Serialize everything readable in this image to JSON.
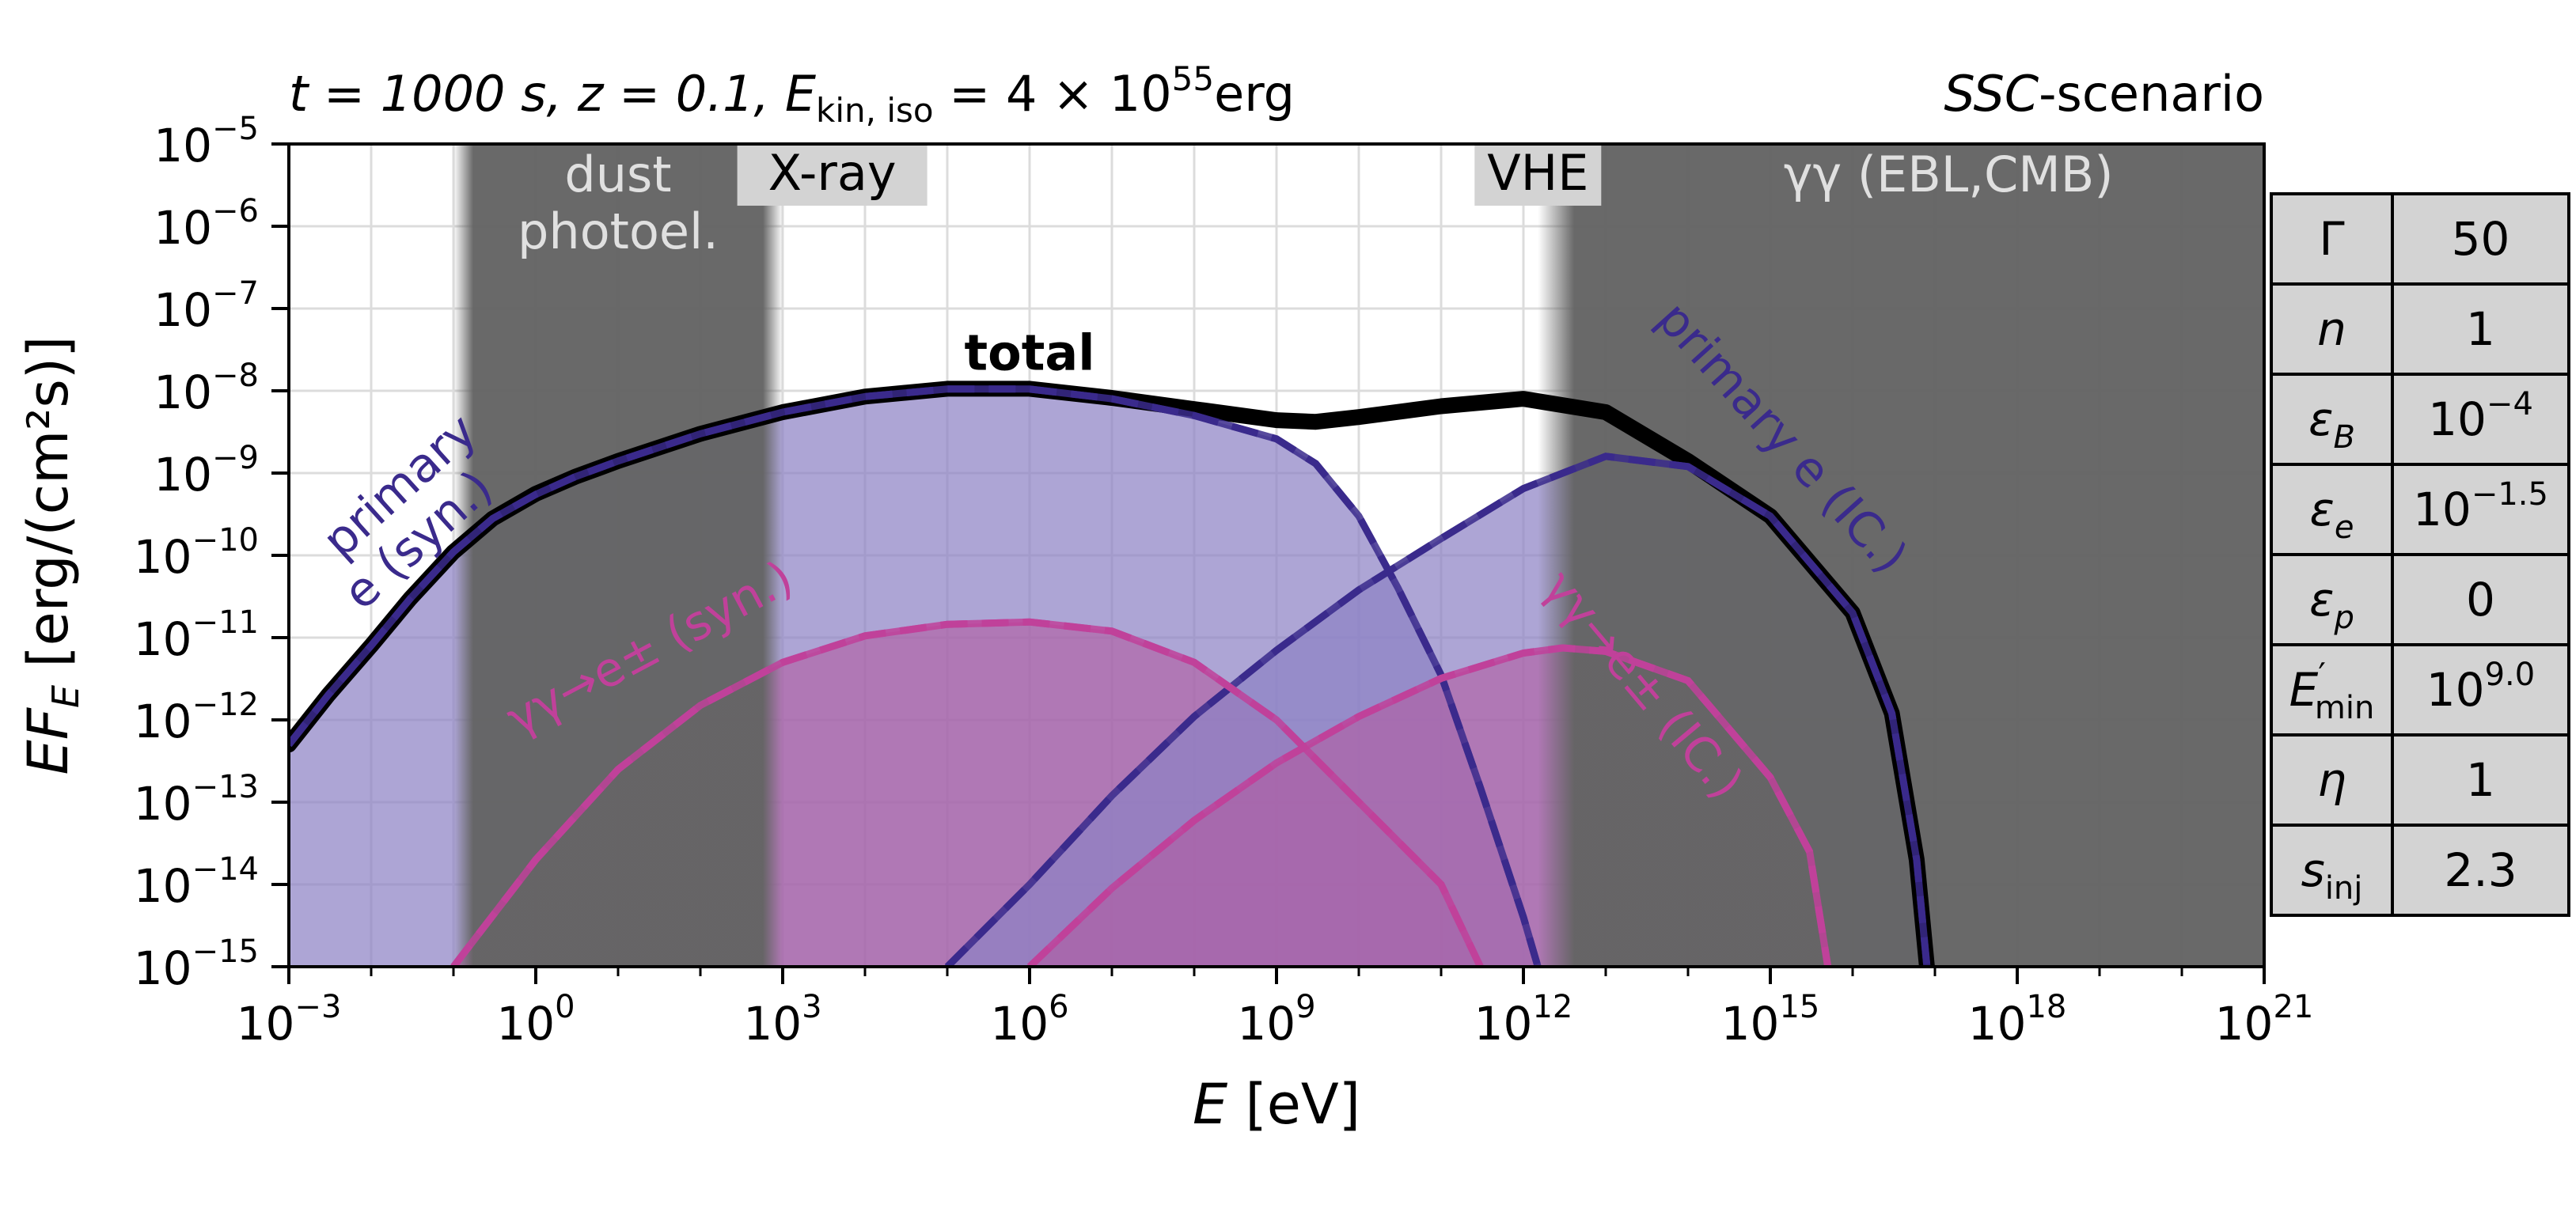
{
  "title_left": {
    "t_part": "t = 1000 s, ",
    "z_part": "z = 0.1, ",
    "e_sym": "E",
    "e_sub": "kin, iso",
    "e_val": " = 4 × 10",
    "e_exp": "55",
    "e_unit": "erg"
  },
  "title_right": {
    "italic": "SSC",
    "rest": "-scenario"
  },
  "colors": {
    "background": "#ffffff",
    "absorption_band": "#646464",
    "primary": "#3a2a8c",
    "primary_fill": "#8d82c5",
    "pair": "#c0419a",
    "pair_fill": "#b25aa0",
    "total": "#000000",
    "label_box": "#d3d3d3",
    "table_cell": "#d3d3d3"
  },
  "chart_data": {
    "type": "line",
    "x_scale": "log",
    "y_scale": "log",
    "xlim": [
      0.001,
      1e+21
    ],
    "ylim": [
      1e-15,
      1e-05
    ],
    "grid": true,
    "xlabel": {
      "sym": "E",
      "unit": " [eV]"
    },
    "ylabel": {
      "sym": "EF",
      "sub": "E",
      "unit": " [erg/(cm²s)]"
    },
    "x_ticks": [
      {
        "base": "10",
        "exp": "−3",
        "value": 0.001
      },
      {
        "base": "10",
        "exp": "0",
        "value": 1
      },
      {
        "base": "10",
        "exp": "3",
        "value": 1000
      },
      {
        "base": "10",
        "exp": "6",
        "value": 1000000
      },
      {
        "base": "10",
        "exp": "9",
        "value": 1000000000
      },
      {
        "base": "10",
        "exp": "12",
        "value": 1000000000000.0
      },
      {
        "base": "10",
        "exp": "15",
        "value": 1000000000000000.0
      },
      {
        "base": "10",
        "exp": "18",
        "value": 1e+18
      },
      {
        "base": "10",
        "exp": "21",
        "value": 1e+21
      }
    ],
    "y_ticks": [
      {
        "base": "10",
        "exp": "−5",
        "value": 1e-05
      },
      {
        "base": "10",
        "exp": "−6",
        "value": 1e-06
      },
      {
        "base": "10",
        "exp": "−7",
        "value": 1e-07
      },
      {
        "base": "10",
        "exp": "−8",
        "value": 1e-08
      },
      {
        "base": "10",
        "exp": "−9",
        "value": 1e-09
      },
      {
        "base": "10",
        "exp": "−10",
        "value": 1e-10
      },
      {
        "base": "10",
        "exp": "−11",
        "value": 1e-11
      },
      {
        "base": "10",
        "exp": "−12",
        "value": 1e-12
      },
      {
        "base": "10",
        "exp": "−13",
        "value": 1e-13
      },
      {
        "base": "10",
        "exp": "−14",
        "value": 1e-14
      },
      {
        "base": "10",
        "exp": "−15",
        "value": 1e-15
      }
    ],
    "absorption_bands": [
      {
        "label_lines": [
          "dust",
          "photoel."
        ],
        "x_range": [
          0.1,
          1000
        ]
      },
      {
        "label_lines": [
          "γγ (EBL,CMB)"
        ],
        "x_range": [
          1500000000000.0,
          1e+21
        ]
      }
    ],
    "windows": [
      {
        "label": "X-ray",
        "x": 4000
      },
      {
        "label": "VHE",
        "x": 1500000000000.0
      }
    ],
    "series": [
      {
        "name": "primary e (syn.)",
        "kind": "primary",
        "points": [
          [
            0.001,
            5e-13
          ],
          [
            0.003,
            2e-12
          ],
          [
            0.01,
            8e-12
          ],
          [
            0.03,
            3e-11
          ],
          [
            0.1,
            1.1e-10
          ],
          [
            0.3,
            2.8e-10
          ],
          [
            1,
            5.5e-10
          ],
          [
            3,
            9e-10
          ],
          [
            10,
            1.4e-09
          ],
          [
            100,
            3e-09
          ],
          [
            1000,
            5.5e-09
          ],
          [
            10000,
            8.5e-09
          ],
          [
            100000,
            1.05e-08
          ],
          [
            1000000,
            1.05e-08
          ],
          [
            10000000,
            8e-09
          ],
          [
            100000000,
            5e-09
          ],
          [
            1000000000,
            2.6e-09
          ],
          [
            3000000000,
            1.3e-09
          ],
          [
            10000000000,
            3e-10
          ],
          [
            30000000000,
            4e-11
          ],
          [
            100000000000,
            3.5e-12
          ],
          [
            300000000000,
            1.5e-13
          ],
          [
            1000000000000,
            4e-15
          ],
          [
            1500000000000,
            1e-15
          ]
        ]
      },
      {
        "name": "primary e (IC.)",
        "kind": "primary",
        "points": [
          [
            100000,
            1e-15
          ],
          [
            1000000,
            1e-14
          ],
          [
            10000000,
            1.2e-13
          ],
          [
            100000000,
            1.1e-12
          ],
          [
            1000000000,
            7e-12
          ],
          [
            10000000000,
            3.8e-11
          ],
          [
            100000000000,
            1.6e-10
          ],
          [
            1000000000000,
            6.5e-10
          ],
          [
            10000000000000,
            1.6e-09
          ],
          [
            100000000000000,
            1.2e-09
          ],
          [
            1000000000000000,
            3e-10
          ],
          [
            1e+16,
            2e-11
          ],
          [
            3e+16,
            1.2e-12
          ],
          [
            6e+16,
            2e-14
          ],
          [
            8e+16,
            1e-15
          ]
        ]
      },
      {
        "name": "γγ→e± (syn.)",
        "kind": "pair",
        "points": [
          [
            0.1,
            1e-15
          ],
          [
            1,
            2e-14
          ],
          [
            10,
            2.5e-13
          ],
          [
            100,
            1.5e-12
          ],
          [
            1000,
            5e-12
          ],
          [
            10000,
            1.05e-11
          ],
          [
            100000,
            1.45e-11
          ],
          [
            1000000,
            1.55e-11
          ],
          [
            10000000,
            1.2e-11
          ],
          [
            100000000,
            5e-12
          ],
          [
            1000000000,
            1e-12
          ],
          [
            10000000000,
            1e-13
          ],
          [
            100000000000,
            1e-14
          ],
          [
            300000000000,
            1e-15
          ]
        ]
      },
      {
        "name": "γγ→e± (IC.)",
        "kind": "pair",
        "points": [
          [
            1000000,
            1e-15
          ],
          [
            10000000,
            9e-15
          ],
          [
            100000000,
            6e-14
          ],
          [
            1000000000,
            3e-13
          ],
          [
            10000000000,
            1.1e-12
          ],
          [
            100000000000,
            3.2e-12
          ],
          [
            1000000000000,
            6.5e-12
          ],
          [
            3000000000000,
            7.5e-12
          ],
          [
            10000000000000,
            6.8e-12
          ],
          [
            100000000000000,
            3e-12
          ],
          [
            1000000000000000,
            2e-13
          ],
          [
            3000000000000000,
            2.5e-14
          ],
          [
            5000000000000000,
            1e-15
          ]
        ]
      }
    ],
    "total": {
      "name": "total",
      "points": [
        [
          0.001,
          5e-13
        ],
        [
          0.003,
          2e-12
        ],
        [
          0.01,
          8e-12
        ],
        [
          0.03,
          3e-11
        ],
        [
          0.1,
          1.1e-10
        ],
        [
          0.3,
          2.8e-10
        ],
        [
          1,
          5.6e-10
        ],
        [
          3,
          9e-10
        ],
        [
          10,
          1.4e-09
        ],
        [
          100,
          3e-09
        ],
        [
          1000,
          5.5e-09
        ],
        [
          10000,
          8.5e-09
        ],
        [
          100000,
          1.06e-08
        ],
        [
          1000000,
          1.06e-08
        ],
        [
          10000000,
          8.2e-09
        ],
        [
          100000000,
          6e-09
        ],
        [
          1000000000,
          4.4e-09
        ],
        [
          3000000000,
          4.2e-09
        ],
        [
          10000000000,
          4.8e-09
        ],
        [
          100000000000,
          6.5e-09
        ],
        [
          1000000000000,
          8e-09
        ],
        [
          10000000000000,
          5.5e-09
        ],
        [
          100000000000000,
          1.4e-09
        ],
        [
          1000000000000000,
          3e-10
        ],
        [
          1e+16,
          2e-11
        ],
        [
          3e+16,
          1.2e-12
        ],
        [
          6e+16,
          2e-14
        ],
        [
          8e+16,
          1e-15
        ]
      ]
    },
    "annotations": [
      {
        "text": "total",
        "x": 1000000,
        "y": 1.8e-08,
        "kind": "total"
      },
      {
        "text": "primary",
        "x": 0.03,
        "y": 5e-10,
        "kind": "primary",
        "rotation": -42
      },
      {
        "text": "e (syn.)",
        "x": 0.05,
        "y": 1.1e-10,
        "kind": "primary",
        "rotation": -42
      },
      {
        "text": "primary e (IC.)",
        "x": 1000000000000000.0,
        "y": 2e-09,
        "kind": "primary",
        "rotation": 48
      },
      {
        "text": "γγ→e± (syn.)",
        "x": 30,
        "y": 5e-12,
        "kind": "pair",
        "rotation": -28
      },
      {
        "text": "γγ→e± (IC.)",
        "x": 20000000000000.0,
        "y": 2e-12,
        "kind": "pair",
        "rotation": 50
      }
    ]
  },
  "params": [
    {
      "sym": "Γ",
      "sub": "",
      "prime": "",
      "base": "50",
      "exp": ""
    },
    {
      "sym": "n",
      "sub": "",
      "prime": "",
      "base": "1",
      "exp": ""
    },
    {
      "sym": "ε",
      "sub": "B",
      "prime": "",
      "base": "10",
      "exp": "−4"
    },
    {
      "sym": "ε",
      "sub": "e",
      "prime": "",
      "base": "10",
      "exp": "−1.5"
    },
    {
      "sym": "ε",
      "sub": "p",
      "prime": "",
      "base": "0",
      "exp": ""
    },
    {
      "sym": "E",
      "sub": "min",
      "prime": "′",
      "base": "10",
      "exp": "9.0"
    },
    {
      "sym": "η",
      "sub": "",
      "prime": "",
      "base": "1",
      "exp": ""
    },
    {
      "sym": "s",
      "sub": "inj",
      "prime": "",
      "base": "2.3",
      "exp": ""
    }
  ]
}
